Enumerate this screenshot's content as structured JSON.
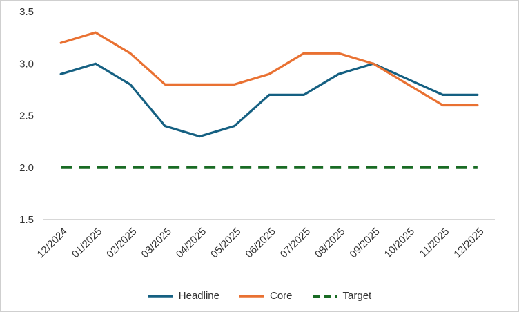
{
  "chart_data": {
    "type": "line",
    "categories": [
      "12/2024",
      "01/2025",
      "02/2025",
      "03/2025",
      "04/2025",
      "05/2025",
      "06/2025",
      "07/2025",
      "08/2025",
      "09/2025",
      "10/2025",
      "11/2025",
      "12/2025"
    ],
    "series": [
      {
        "name": "Headline",
        "color": "#156082",
        "dash": null,
        "values": [
          2.9,
          3.0,
          2.8,
          2.4,
          2.3,
          2.4,
          2.7,
          2.7,
          2.9,
          3.0,
          2.85,
          2.7,
          2.7
        ]
      },
      {
        "name": "Core",
        "color": "#E97132",
        "dash": "15 10",
        "dash_enabled": false,
        "values": [
          3.2,
          3.3,
          3.1,
          2.8,
          2.8,
          2.8,
          2.9,
          3.1,
          3.1,
          3.0,
          2.8,
          2.6,
          2.6
        ]
      },
      {
        "name": "Target",
        "color": "#196B24",
        "dash": "16 10",
        "dash_enabled": true,
        "values": [
          2.0,
          2.0,
          2.0,
          2.0,
          2.0,
          2.0,
          2.0,
          2.0,
          2.0,
          2.0,
          2.0,
          2.0,
          2.0
        ]
      }
    ],
    "title": "",
    "xlabel": "",
    "ylabel": "",
    "ylim": [
      1.5,
      3.5
    ],
    "yticks": [
      1.5,
      2.0,
      2.5,
      3.0,
      3.5
    ],
    "ytick_format_decimals": 1,
    "grid": false,
    "legend_position": "bottom",
    "axis_color": "#BFBFBF",
    "tick_text_color": "#333333"
  }
}
